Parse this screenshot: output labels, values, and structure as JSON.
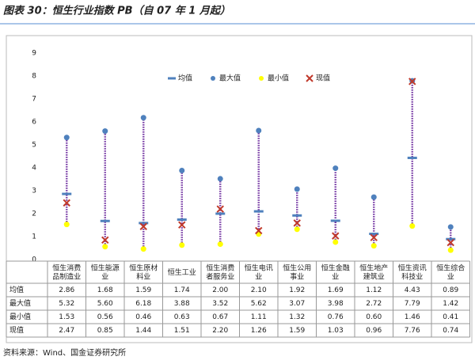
{
  "title": "图表 30：恒生行业指数 PB（自 07 年 1 月起）",
  "source": "资料来源：Wind、国金证券研究所",
  "chart_data": {
    "type": "range",
    "categories": [
      "恒生消费品制造业",
      "恒生能源业",
      "恒生原材料业",
      "恒生工业",
      "恒生消费者服务业",
      "恒生电讯业",
      "恒生公用事业",
      "恒生金融业",
      "恒生地产建筑业",
      "恒生资讯科技业",
      "恒生综合业"
    ],
    "series": [
      {
        "name": "均值",
        "color": "#4f81bd",
        "marker": "dash",
        "values": [
          2.86,
          1.68,
          1.59,
          1.74,
          2.0,
          2.1,
          1.92,
          1.69,
          1.12,
          4.43,
          0.89
        ],
        "value_labels": [
          "2.86",
          "1.68",
          "1.59",
          "1.74",
          "2.00",
          "2.10",
          "1.92",
          "1.69",
          "1.12",
          "4.43",
          "0.89"
        ]
      },
      {
        "name": "最大值",
        "color": "#4f81bd",
        "marker": "dot",
        "values": [
          5.32,
          5.6,
          6.18,
          3.88,
          3.52,
          5.62,
          3.07,
          3.98,
          2.72,
          7.79,
          1.42
        ],
        "value_labels": [
          "5.32",
          "5.60",
          "6.18",
          "3.88",
          "3.52",
          "5.62",
          "3.07",
          "3.98",
          "2.72",
          "7.79",
          "1.42"
        ]
      },
      {
        "name": "最小值",
        "color": "#ffff00",
        "marker": "dot",
        "values": [
          1.53,
          0.56,
          0.46,
          0.63,
          0.67,
          1.11,
          1.32,
          0.76,
          0.6,
          1.46,
          0.41
        ],
        "value_labels": [
          "1.53",
          "0.56",
          "0.46",
          "0.63",
          "0.67",
          "1.11",
          "1.32",
          "0.76",
          "0.60",
          "1.46",
          "0.41"
        ]
      },
      {
        "name": "现值",
        "color": "#c0392b",
        "marker": "x",
        "values": [
          2.47,
          0.85,
          1.44,
          1.51,
          2.2,
          1.26,
          1.59,
          1.03,
          0.96,
          7.76,
          0.74
        ],
        "value_labels": [
          "2.47",
          "0.85",
          "1.44",
          "1.51",
          "2.20",
          "1.26",
          "1.59",
          "1.03",
          "0.96",
          "7.76",
          "0.74"
        ]
      }
    ],
    "range_color": "#7030a0",
    "ylim": [
      0,
      9
    ],
    "yticks": [
      0,
      1,
      2,
      3,
      4,
      5,
      6,
      7,
      8,
      9
    ],
    "grid": false
  }
}
